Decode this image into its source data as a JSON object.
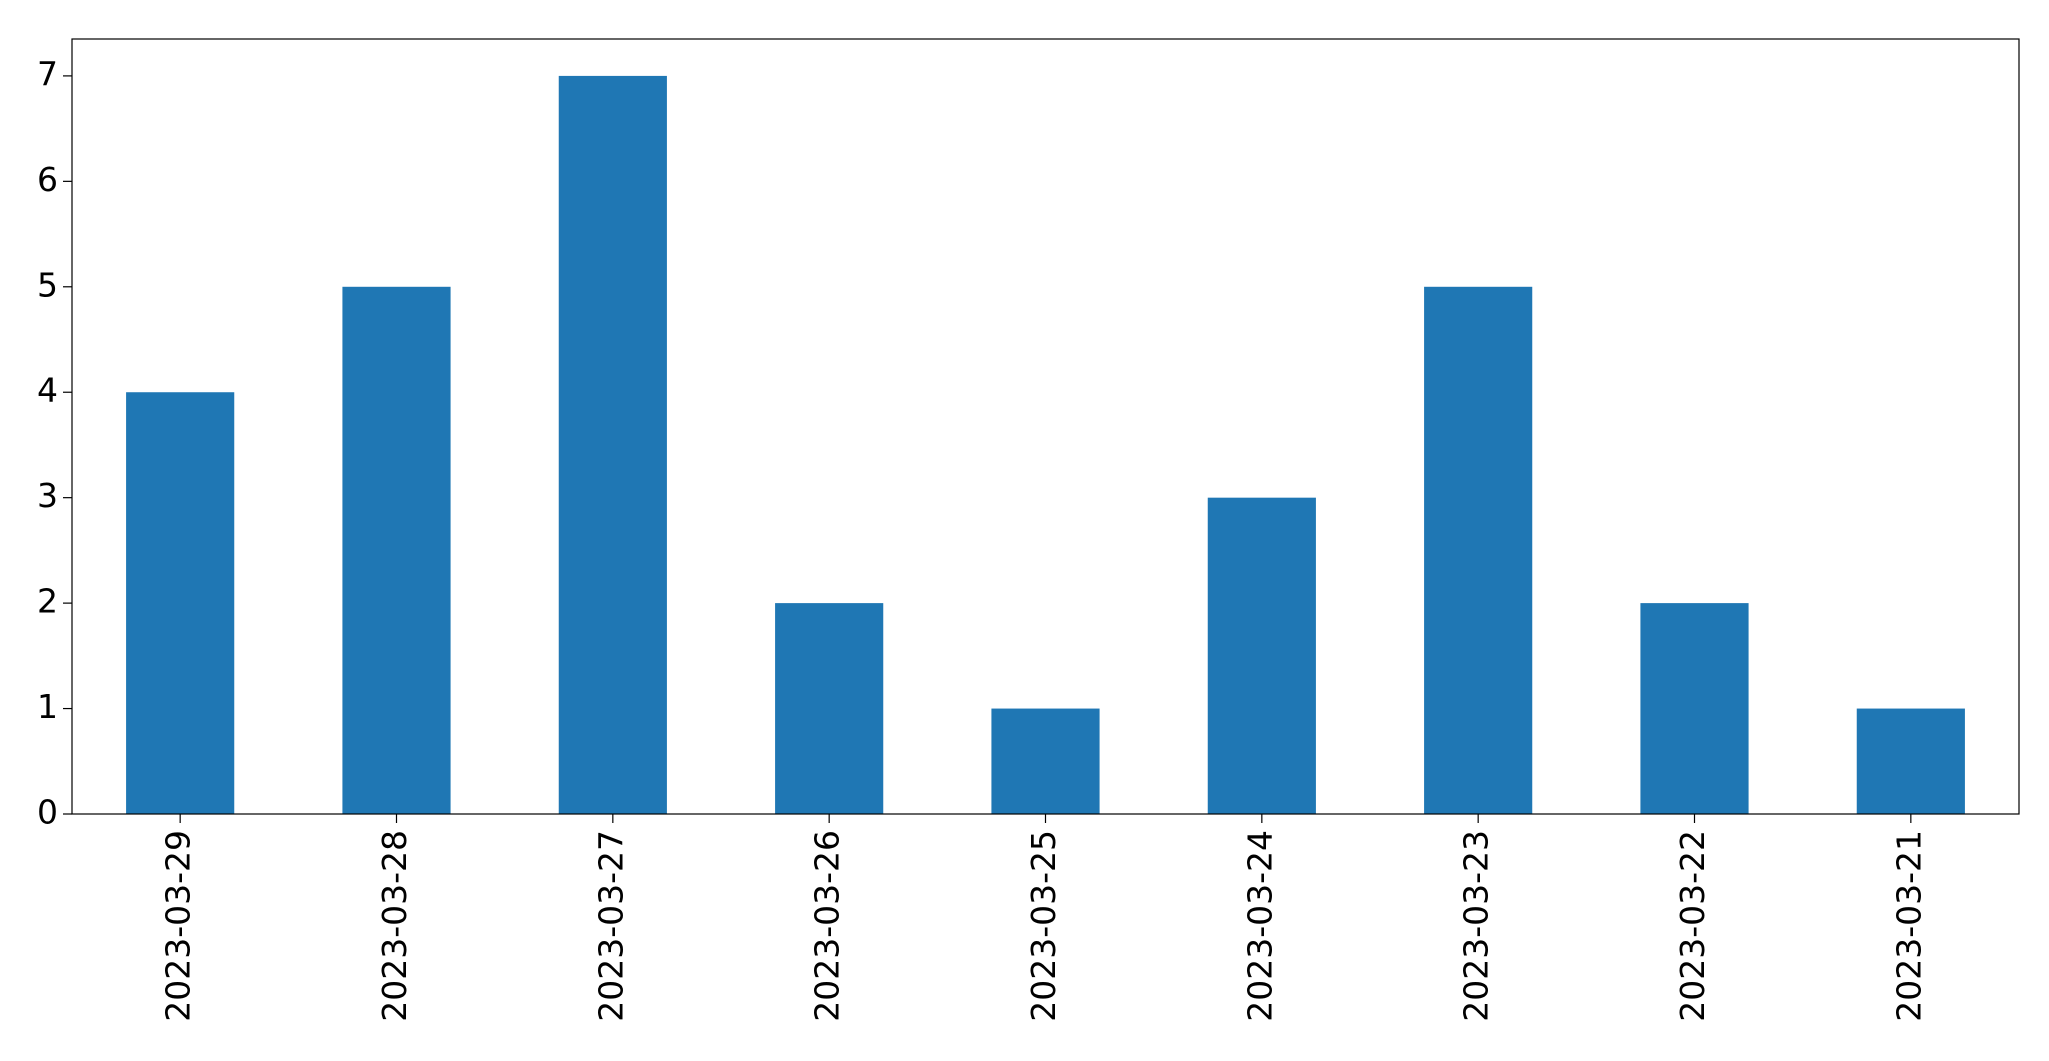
{
  "chart_data": {
    "type": "bar",
    "categories": [
      "2023-03-29",
      "2023-03-28",
      "2023-03-27",
      "2023-03-26",
      "2023-03-25",
      "2023-03-24",
      "2023-03-23",
      "2023-03-22",
      "2023-03-21"
    ],
    "values": [
      4,
      5,
      7,
      2,
      1,
      3,
      5,
      2,
      1
    ],
    "color": "#1f77b4",
    "ylim": [
      0,
      7.35
    ],
    "yticks": [
      0,
      1,
      2,
      3,
      4,
      5,
      6,
      7
    ],
    "grid": false
  }
}
